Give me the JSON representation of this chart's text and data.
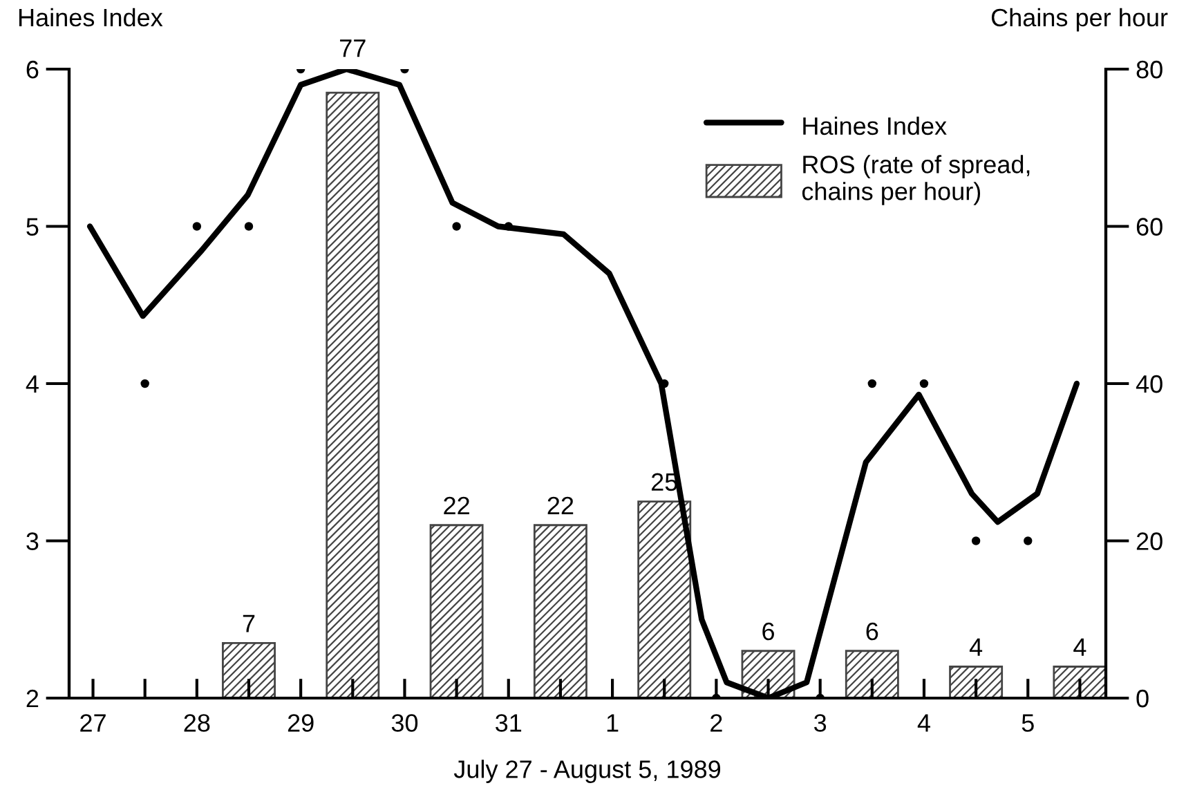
{
  "chart_data": {
    "type": "line",
    "x": [
      "1989-07-26T23:17",
      "1989-07-27T11:31",
      "1989-07-28T01:12",
      "1989-07-28T11:46",
      "1989-07-29T00:00",
      "1989-07-29T10:34",
      "1989-07-29T22:48",
      "1989-07-30T11:02",
      "1989-07-30T21:36",
      "1989-07-31T12:43",
      "1989-07-31T23:17",
      "1989-08-01T11:17",
      "1989-08-01T17:31",
      "1989-08-01T20:38",
      "1989-08-02T02:24",
      "1989-08-02T12:00",
      "1989-08-02T20:53",
      "1989-08-03T10:34",
      "1989-08-03T22:48",
      "1989-08-04T11:02",
      "1989-08-04T17:02",
      "1989-08-05T02:10",
      "1989-08-05T11:17"
    ],
    "xlabel": "July 27 - August 5, 1989",
    "ylabel": "Haines Index",
    "y2label": "Chains per hour",
    "xlim": [
      "1989-07-26T18:29",
      "1989-08-05T18:00"
    ],
    "xticks": [
      {
        "value": "1989-07-27",
        "label": "27"
      },
      {
        "value": "1989-07-27T12:00",
        "label": null
      },
      {
        "value": "1989-07-28",
        "label": "28"
      },
      {
        "value": "1989-07-28T12:00",
        "label": null
      },
      {
        "value": "1989-07-29",
        "label": "29"
      },
      {
        "value": "1989-07-29T12:00",
        "label": null
      },
      {
        "value": "1989-07-30",
        "label": "30"
      },
      {
        "value": "1989-07-30T12:00",
        "label": null
      },
      {
        "value": "1989-07-31",
        "label": "31"
      },
      {
        "value": "1989-07-31T12:00",
        "label": null
      },
      {
        "value": "1989-08-01",
        "label": "1"
      },
      {
        "value": "1989-08-01T12:00",
        "label": null
      },
      {
        "value": "1989-08-02",
        "label": "2"
      },
      {
        "value": "1989-08-02T12:00",
        "label": null
      },
      {
        "value": "1989-08-03",
        "label": "3"
      },
      {
        "value": "1989-08-03T12:00",
        "label": null
      },
      {
        "value": "1989-08-04",
        "label": "4"
      },
      {
        "value": "1989-08-04T12:00",
        "label": null
      },
      {
        "value": "1989-08-05",
        "label": "5"
      },
      {
        "value": "1989-08-05T12:00",
        "label": null
      }
    ],
    "ylim": [
      2,
      6
    ],
    "yticks": [
      2,
      3,
      4,
      5,
      6
    ],
    "y2lim": [
      0,
      80
    ],
    "y2ticks": [
      0,
      20,
      40,
      60,
      80
    ],
    "grid": false,
    "legend": "top right",
    "series": [
      {
        "name": "ROS (rate of spread,\nchains per hour)",
        "type": "bar",
        "axis": "y2",
        "color": "#444444",
        "x": [
          "1989-07-28T12:00",
          "1989-07-29T12:00",
          "1989-07-30T12:00",
          "1989-07-31T12:00",
          "1989-08-01T12:00",
          "1989-08-02T12:00",
          "1989-08-03T12:00",
          "1989-08-04T12:00",
          "1989-08-05T12:00"
        ],
        "values": [
          7,
          77,
          22,
          22,
          25,
          6,
          6,
          4,
          4
        ],
        "data_labels": true
      },
      {
        "name": "Haines Index",
        "color": "#000000",
        "values": [
          5,
          4.43,
          4.85,
          5.2,
          5.9,
          6.0,
          5.9,
          5.15,
          5.0,
          4.95,
          4.7,
          4.0,
          3.0,
          2.5,
          2.1,
          2.0,
          2.1,
          3.5,
          3.93,
          3.3,
          3.12,
          3.3,
          4.0
        ]
      },
      {
        "type": "scatter",
        "color": "#000000",
        "marker": "circle",
        "x": [
          "1989-07-27T12:00",
          "1989-07-28T00:00",
          "1989-07-28T12:00",
          "1989-07-29T00:00",
          "1989-07-30T00:00",
          "1989-07-30T12:00",
          "1989-07-31T00:00",
          "1989-08-01T12:00",
          "1989-08-02T00:00",
          "1989-08-03T00:00",
          "1989-08-03T12:00",
          "1989-08-04T00:00",
          "1989-08-04T12:00",
          "1989-08-05T00:00"
        ],
        "values": [
          4,
          5,
          5,
          6,
          6,
          5,
          5,
          4,
          2,
          2,
          4,
          4,
          3,
          3
        ]
      }
    ]
  }
}
